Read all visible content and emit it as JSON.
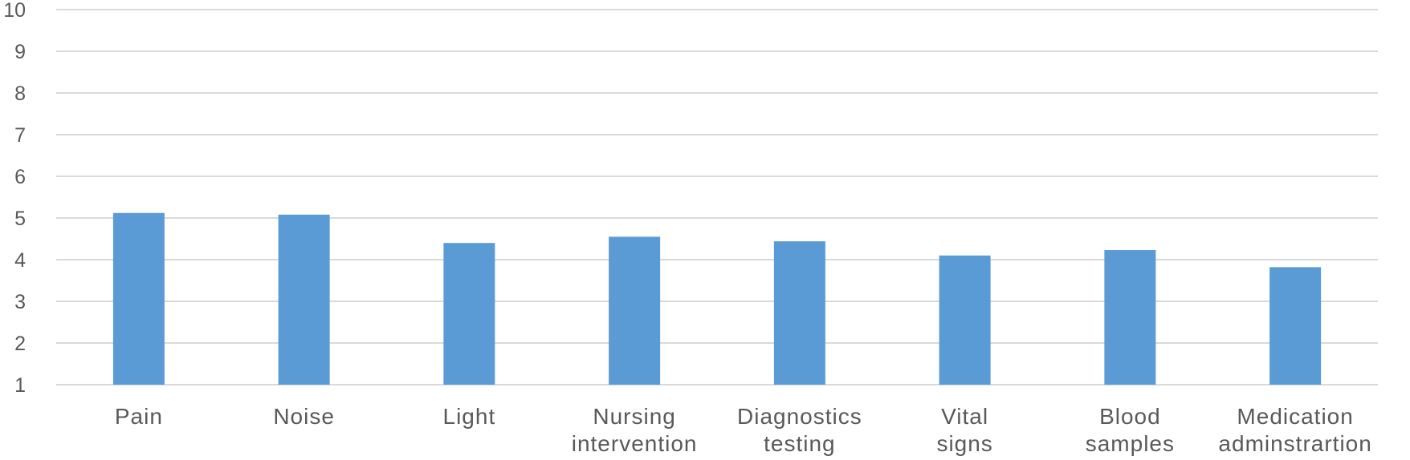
{
  "chart_data": {
    "type": "bar",
    "title": "",
    "xlabel": "",
    "ylabel": "",
    "ylim": [
      1,
      10
    ],
    "yticks": [
      "1",
      "2",
      "3",
      "4",
      "5",
      "6",
      "7",
      "8",
      "9",
      "10"
    ],
    "grid": true,
    "categories": [
      [
        "Pain"
      ],
      [
        "Noise"
      ],
      [
        "Light"
      ],
      [
        "Nursing",
        "intervention"
      ],
      [
        "Diagnostics",
        "testing"
      ],
      [
        "Vital",
        "signs"
      ],
      [
        "Blood",
        "samples"
      ],
      [
        "Medication",
        "adminstrartion"
      ]
    ],
    "values": [
      5.12,
      5.08,
      4.4,
      4.55,
      4.44,
      4.1,
      4.23,
      3.82
    ],
    "bar_color": "#5b9bd5",
    "grid_color": "#d9d9d9",
    "text_color": "#595959"
  }
}
